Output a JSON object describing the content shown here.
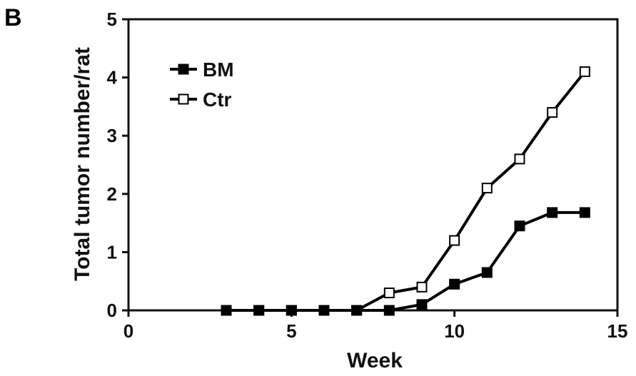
{
  "panel_label": "B",
  "chart_data": {
    "type": "line",
    "xlabel": "Week",
    "ylabel": "Total tumor number/rat",
    "xlim": [
      0,
      15
    ],
    "ylim": [
      0,
      5
    ],
    "xticks": [
      0,
      5,
      10,
      15
    ],
    "yticks": [
      0,
      1,
      2,
      3,
      4,
      5
    ],
    "grid": false,
    "legend_position": "top-left",
    "series": [
      {
        "name": "BM",
        "marker": "filled-square",
        "color": "#000000",
        "x": [
          3,
          4,
          5,
          6,
          7,
          8,
          9,
          10,
          11,
          12,
          13,
          14
        ],
        "y": [
          0,
          0,
          0,
          0,
          0,
          0,
          0.1,
          0.45,
          0.65,
          1.45,
          1.68,
          1.68
        ]
      },
      {
        "name": "Ctr",
        "marker": "open-square",
        "color": "#000000",
        "x": [
          3,
          4,
          5,
          6,
          7,
          8,
          9,
          10,
          11,
          12,
          13,
          14
        ],
        "y": [
          0,
          0,
          0,
          0,
          0,
          0.3,
          0.4,
          1.2,
          2.1,
          2.6,
          3.4,
          4.1
        ]
      }
    ]
  }
}
